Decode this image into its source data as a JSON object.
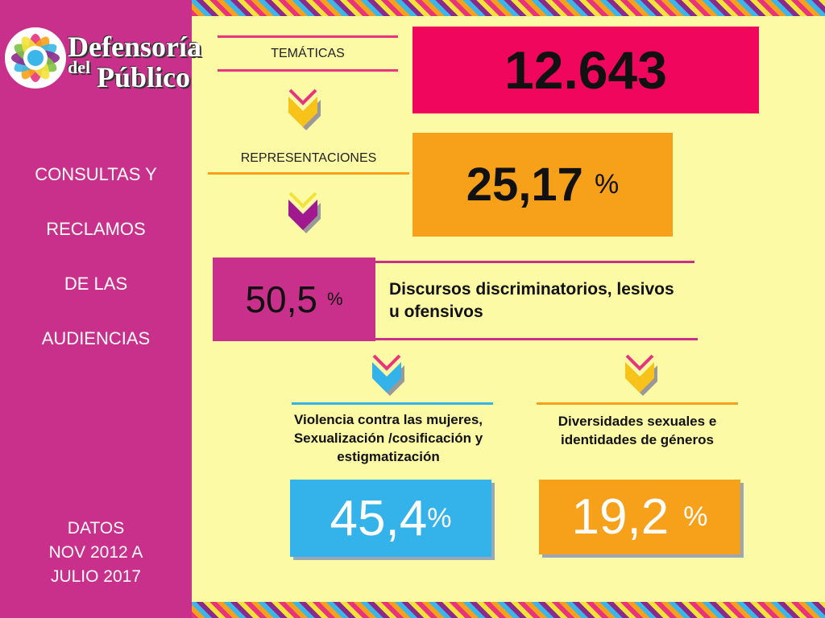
{
  "brand": {
    "line1": "Defensoría",
    "line2": "del",
    "line3": "Público"
  },
  "sidebar": {
    "heading": [
      "CONSULTAS Y",
      "RECLAMOS",
      "DE LAS",
      "AUDIENCIAS"
    ],
    "footer": [
      "DATOS",
      "NOV 2012 A",
      "JULIO 2017"
    ]
  },
  "flow": {
    "tematicas": {
      "label": "TEMÁTICAS",
      "value": "12.643"
    },
    "representaciones": {
      "label": "REPRESENTACIONES",
      "value": "25,17",
      "unit": "%"
    },
    "discursos": {
      "value": "50,5",
      "unit": "%",
      "label": "Discursos discriminatorios, lesivos u ofensivos"
    },
    "violencia": {
      "label": "Violencia contra las mujeres, Sexualización /cosificación y estigmatización",
      "value": "45,4",
      "unit": "%"
    },
    "diversidades": {
      "label": "Diversidades sexuales e identidades de géneros",
      "value": "19,2",
      "unit": "%"
    }
  },
  "colors": {
    "background": "#fdfaa6",
    "sidebar": "#c8308c",
    "pink": "#f0065c",
    "orange": "#f7a11a",
    "purple": "#c8308c",
    "blue": "#34b3ea"
  },
  "icons": [
    "chevron-down-icon"
  ]
}
